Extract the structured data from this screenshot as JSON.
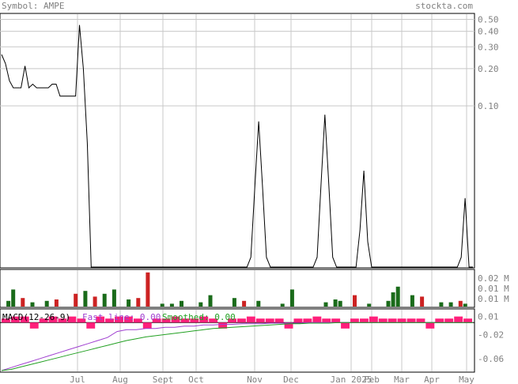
{
  "header": {
    "symbol_label": "Symbol: AMPE",
    "site": "stockta.com"
  },
  "colors": {
    "price_line": "#000000",
    "volume_up": "#1a6b1a",
    "volume_down": "#cc2222",
    "macd_hist": "#ff1f7a",
    "macd_fast": "#a040d0",
    "macd_smooth": "#22a022",
    "grid": "#c8c8c8"
  },
  "chart_data": [
    {
      "type": "line",
      "title": "",
      "x_tick_labels": [
        "Jul",
        "Aug",
        "Sept",
        "Oct",
        "Nov",
        "Dec",
        "Jan 2025",
        "Feb",
        "Mar",
        "Apr",
        "May"
      ],
      "y_scale": "log",
      "y_tick_labels": [
        "0.50",
        "0.40",
        "0.30",
        "0.20",
        "0.10"
      ],
      "ylim": [
        0.005,
        0.55
      ],
      "grid": true,
      "series": [
        {
          "values": [
            0.26,
            0.22,
            0.16,
            0.14,
            0.14,
            0.14,
            0.21,
            0.14,
            0.15,
            0.14,
            0.14,
            0.14,
            0.14,
            0.15,
            0.15,
            0.12,
            0.12,
            0.12,
            0.12,
            0.12,
            0.45,
            0.2,
            0.05,
            0.005,
            0.005,
            0.005,
            0.005,
            0.005,
            0.005,
            0.005,
            0.005,
            0.005,
            0.005,
            0.005,
            0.005,
            0.005,
            0.005,
            0.005,
            0.005,
            0.005,
            0.005,
            0.005,
            0.005,
            0.005,
            0.005,
            0.005,
            0.005,
            0.005,
            0.005,
            0.005,
            0.005,
            0.005,
            0.005,
            0.005,
            0.005,
            0.005,
            0.005,
            0.005,
            0.005,
            0.005,
            0.005,
            0.005,
            0.005,
            0.005,
            0.006,
            0.022,
            0.075,
            0.022,
            0.006,
            0.005,
            0.005,
            0.005,
            0.005,
            0.005,
            0.005,
            0.005,
            0.005,
            0.005,
            0.005,
            0.005,
            0.005,
            0.006,
            0.023,
            0.085,
            0.023,
            0.006,
            0.005,
            0.005,
            0.005,
            0.005,
            0.005,
            0.005,
            0.01,
            0.03,
            0.008,
            0.005,
            0.005,
            0.005,
            0.005,
            0.005,
            0.005,
            0.005,
            0.005,
            0.005,
            0.005,
            0.005,
            0.005,
            0.005,
            0.005,
            0.005,
            0.005,
            0.005,
            0.005,
            0.005,
            0.005,
            0.005,
            0.005,
            0.005,
            0.006,
            0.018,
            0.005,
            0.005
          ]
        }
      ]
    },
    {
      "type": "bar",
      "title": "",
      "y_tick_labels": [
        "0.02 M",
        "0.01 M",
        "0.01 M"
      ],
      "series": [
        {
          "name": "",
          "bars": [
            {
              "x": 1,
              "v": 0.004,
              "dir": "up"
            },
            {
              "x": 2,
              "v": 0.012,
              "dir": "up"
            },
            {
              "x": 4,
              "v": 0.006,
              "dir": "down"
            },
            {
              "x": 6,
              "v": 0.003,
              "dir": "up"
            },
            {
              "x": 9,
              "v": 0.004,
              "dir": "up"
            },
            {
              "x": 11,
              "v": 0.005,
              "dir": "down"
            },
            {
              "x": 15,
              "v": 0.009,
              "dir": "down"
            },
            {
              "x": 17,
              "v": 0.011,
              "dir": "up"
            },
            {
              "x": 19,
              "v": 0.007,
              "dir": "down"
            },
            {
              "x": 21,
              "v": 0.009,
              "dir": "up"
            },
            {
              "x": 23,
              "v": 0.012,
              "dir": "up"
            },
            {
              "x": 26,
              "v": 0.005,
              "dir": "up"
            },
            {
              "x": 28,
              "v": 0.006,
              "dir": "down"
            },
            {
              "x": 30,
              "v": 0.024,
              "dir": "down"
            },
            {
              "x": 33,
              "v": 0.002,
              "dir": "up"
            },
            {
              "x": 35,
              "v": 0.002,
              "dir": "up"
            },
            {
              "x": 37,
              "v": 0.004,
              "dir": "up"
            },
            {
              "x": 41,
              "v": 0.003,
              "dir": "up"
            },
            {
              "x": 43,
              "v": 0.008,
              "dir": "up"
            },
            {
              "x": 48,
              "v": 0.006,
              "dir": "up"
            },
            {
              "x": 50,
              "v": 0.004,
              "dir": "down"
            },
            {
              "x": 53,
              "v": 0.004,
              "dir": "up"
            },
            {
              "x": 58,
              "v": 0.002,
              "dir": "up"
            },
            {
              "x": 60,
              "v": 0.012,
              "dir": "up"
            },
            {
              "x": 67,
              "v": 0.003,
              "dir": "up"
            },
            {
              "x": 69,
              "v": 0.005,
              "dir": "up"
            },
            {
              "x": 70,
              "v": 0.004,
              "dir": "up"
            },
            {
              "x": 73,
              "v": 0.008,
              "dir": "down"
            },
            {
              "x": 76,
              "v": 0.002,
              "dir": "up"
            },
            {
              "x": 80,
              "v": 0.004,
              "dir": "up"
            },
            {
              "x": 81,
              "v": 0.01,
              "dir": "up"
            },
            {
              "x": 82,
              "v": 0.014,
              "dir": "up"
            },
            {
              "x": 85,
              "v": 0.008,
              "dir": "up"
            },
            {
              "x": 87,
              "v": 0.007,
              "dir": "down"
            },
            {
              "x": 91,
              "v": 0.003,
              "dir": "up"
            },
            {
              "x": 93,
              "v": 0.003,
              "dir": "up"
            },
            {
              "x": 95,
              "v": 0.004,
              "dir": "down"
            },
            {
              "x": 96,
              "v": 0.002,
              "dir": "up"
            }
          ]
        }
      ]
    },
    {
      "type": "line",
      "title": "MACD(12-26-9)",
      "legend": [
        {
          "label": "Fast line: 0.00",
          "color": "#a040d0"
        },
        {
          "label": "Smoothed: 0.00",
          "color": "#22a022"
        }
      ],
      "y_tick_labels": [
        "0.01",
        "-0.02",
        "-0.06"
      ],
      "ylim": [
        -0.08,
        0.02
      ],
      "series": [
        {
          "name": "Fast line",
          "values": [
            -0.08,
            -0.075,
            -0.07,
            -0.065,
            -0.06,
            -0.055,
            -0.05,
            -0.045,
            -0.04,
            -0.035,
            -0.03,
            -0.025,
            -0.015,
            -0.012,
            -0.012,
            -0.01,
            -0.01,
            -0.008,
            -0.008,
            -0.006,
            -0.006,
            -0.004,
            -0.004,
            -0.003,
            -0.003,
            -0.002,
            -0.002,
            -0.002,
            -0.001,
            -0.001,
            -0.001,
            -0.001,
            0.0,
            0.0,
            0.0,
            0.0,
            0.0,
            0.0,
            0.0,
            0.0,
            0.0,
            0.0,
            0.0,
            0.0,
            0.0,
            0.0,
            0.0,
            0.0,
            0.0,
            0.0
          ]
        },
        {
          "name": "Smoothed",
          "values": [
            -0.08,
            -0.078,
            -0.074,
            -0.07,
            -0.066,
            -0.062,
            -0.058,
            -0.054,
            -0.05,
            -0.046,
            -0.042,
            -0.038,
            -0.034,
            -0.03,
            -0.027,
            -0.024,
            -0.022,
            -0.02,
            -0.018,
            -0.016,
            -0.014,
            -0.012,
            -0.01,
            -0.009,
            -0.008,
            -0.007,
            -0.006,
            -0.005,
            -0.004,
            -0.003,
            -0.002,
            -0.002,
            -0.001,
            -0.001,
            -0.001,
            0.0,
            0.0,
            0.0,
            0.0,
            0.0,
            0.0,
            0.0,
            0.0,
            0.0,
            0.0,
            0.0,
            0.0,
            0.0,
            0.0,
            0.0
          ]
        },
        {
          "name": "Histogram",
          "values": [
            0.0,
            0.01,
            0.01,
            -0.01,
            0.0,
            0.01,
            0.0,
            0.01,
            0.0,
            -0.01,
            0.01,
            0.0,
            0.01,
            0.01,
            0.0,
            -0.01,
            0.0,
            0.0,
            0.01,
            0.0,
            0.0,
            0.01,
            0.0,
            -0.01,
            0.0,
            0.0,
            0.01,
            0.0,
            0.0,
            0.0,
            -0.01,
            0.0,
            0.0,
            0.01,
            0.0,
            0.0,
            -0.01,
            0.0,
            0.0,
            0.01,
            0.0,
            0.0,
            0.0,
            0.0,
            0.0,
            -0.01,
            0.0,
            0.0,
            0.01,
            0.0
          ]
        }
      ]
    }
  ]
}
